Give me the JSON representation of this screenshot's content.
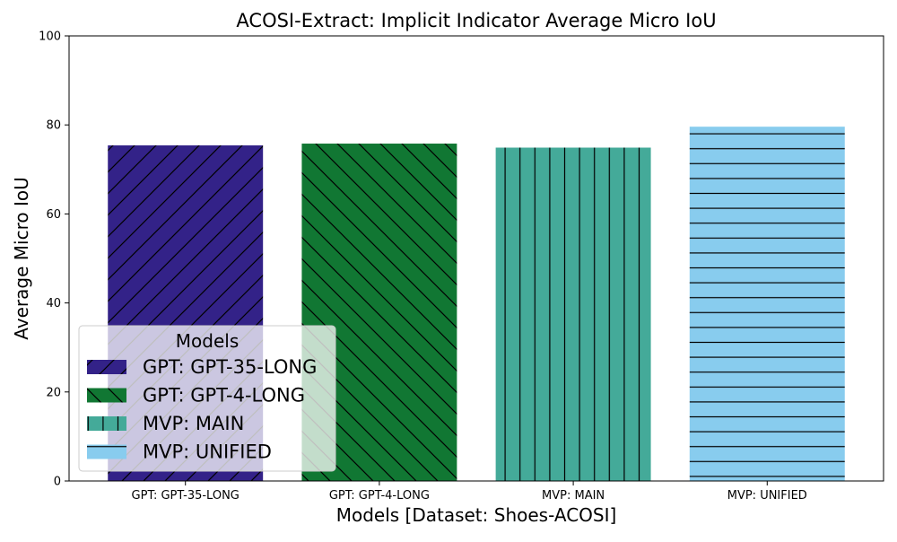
{
  "chart_data": {
    "type": "bar",
    "title": "ACOSI-Extract: Implicit Indicator Average Micro IoU",
    "xlabel": "Models [Dataset: Shoes-ACOSI]",
    "ylabel": "Average Micro IoU",
    "ylim": [
      0,
      100
    ],
    "yticks": [
      0,
      20,
      40,
      60,
      80,
      100
    ],
    "grid": false,
    "categories": [
      "GPT: GPT-35-LONG",
      "GPT: GPT-4-LONG",
      "MVP: MAIN",
      "MVP: UNIFIED"
    ],
    "values": [
      75.4,
      75.8,
      74.9,
      79.6
    ],
    "colors": [
      "#332288",
      "#117733",
      "#44AA99",
      "#88CCEE"
    ],
    "hatches": [
      "diag-up",
      "diag-down",
      "vertical",
      "horizontal"
    ],
    "legend": {
      "title": "Models",
      "placement": "lower-left",
      "entries": [
        "GPT: GPT-35-LONG",
        "GPT: GPT-4-LONG",
        "MVP: MAIN",
        "MVP: UNIFIED"
      ]
    }
  }
}
